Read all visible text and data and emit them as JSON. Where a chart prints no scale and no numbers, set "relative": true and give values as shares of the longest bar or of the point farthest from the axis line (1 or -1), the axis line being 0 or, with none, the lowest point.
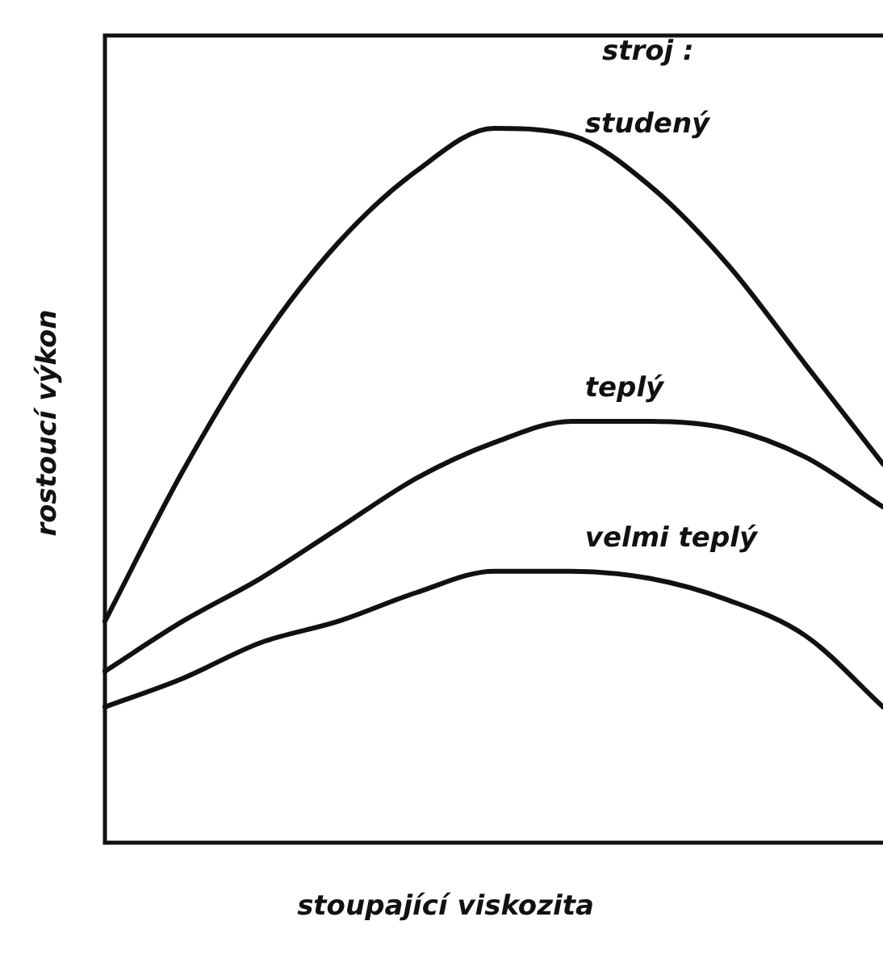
{
  "chart_data": {
    "type": "line",
    "relative": true,
    "xlabel": "stoupající viskozita",
    "ylabel": "rostoucí výkon",
    "annotations": [
      "stroj :"
    ],
    "legend": false,
    "marker": "none",
    "line_style": "solid",
    "categories": [
      null,
      null,
      null,
      null,
      null,
      null,
      null,
      null,
      null,
      null,
      null
    ],
    "series": [
      {
        "name": "studený",
        "color": "#111111",
        "values": [
          0.31,
          0.52,
          0.7,
          0.84,
          0.94,
          1.0,
          0.99,
          0.92,
          0.81,
          0.67,
          0.53
        ]
      },
      {
        "name": "teplý",
        "color": "#111111",
        "values": [
          0.24,
          0.31,
          0.37,
          0.44,
          0.51,
          0.56,
          0.59,
          0.59,
          0.58,
          0.54,
          0.47
        ]
      },
      {
        "name": "velmi teplý",
        "color": "#111111",
        "values": [
          0.19,
          0.23,
          0.28,
          0.31,
          0.35,
          0.38,
          0.38,
          0.37,
          0.34,
          0.29,
          0.19
        ]
      }
    ]
  }
}
